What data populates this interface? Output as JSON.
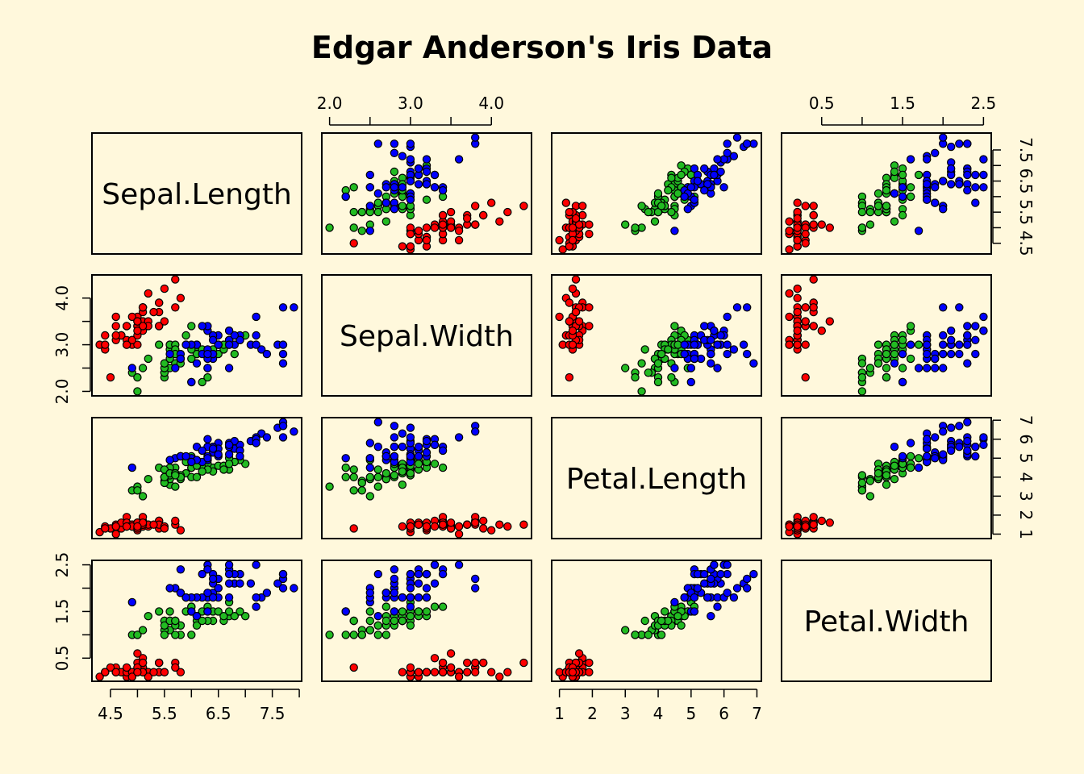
{
  "chart_data": {
    "type": "scatter",
    "subtype": "scatterplot-matrix",
    "title": "Edgar Anderson's Iris Data",
    "variables": [
      "Sepal.Length",
      "Sepal.Width",
      "Petal.Length",
      "Petal.Width"
    ],
    "ranges": {
      "Sepal.Length": [
        4.3,
        7.9
      ],
      "Sepal.Width": [
        2.0,
        4.4
      ],
      "Petal.Length": [
        1.0,
        6.9
      ],
      "Petal.Width": [
        0.1,
        2.5
      ]
    },
    "ticks": {
      "Sepal.Length": [
        "4.5",
        "5.5",
        "6.5",
        "7.5"
      ],
      "Sepal.Width": [
        "2.0",
        "3.0",
        "4.0"
      ],
      "Petal.Length": [
        "1",
        "2",
        "3",
        "4",
        "5",
        "6",
        "7"
      ],
      "Petal.Width": [
        "0.5",
        "1.5",
        "2.5"
      ]
    },
    "grid": false,
    "legend": "none",
    "series": [
      {
        "color": "#ff0000",
        "points": [
          [
            5.1,
            3.5,
            1.4,
            0.2
          ],
          [
            4.9,
            3.0,
            1.4,
            0.2
          ],
          [
            4.7,
            3.2,
            1.3,
            0.2
          ],
          [
            4.6,
            3.1,
            1.5,
            0.2
          ],
          [
            5.0,
            3.6,
            1.4,
            0.2
          ],
          [
            5.4,
            3.9,
            1.7,
            0.4
          ],
          [
            4.6,
            3.4,
            1.4,
            0.3
          ],
          [
            5.0,
            3.4,
            1.5,
            0.2
          ],
          [
            4.4,
            2.9,
            1.4,
            0.2
          ],
          [
            4.9,
            3.1,
            1.5,
            0.1
          ],
          [
            5.4,
            3.7,
            1.5,
            0.2
          ],
          [
            4.8,
            3.4,
            1.6,
            0.2
          ],
          [
            4.8,
            3.0,
            1.4,
            0.1
          ],
          [
            4.3,
            3.0,
            1.1,
            0.1
          ],
          [
            5.8,
            4.0,
            1.2,
            0.2
          ],
          [
            5.7,
            4.4,
            1.5,
            0.4
          ],
          [
            5.4,
            3.9,
            1.3,
            0.4
          ],
          [
            5.1,
            3.5,
            1.4,
            0.3
          ],
          [
            5.7,
            3.8,
            1.7,
            0.3
          ],
          [
            5.1,
            3.8,
            1.5,
            0.3
          ],
          [
            5.4,
            3.4,
            1.7,
            0.2
          ],
          [
            5.1,
            3.7,
            1.5,
            0.4
          ],
          [
            4.6,
            3.6,
            1.0,
            0.2
          ],
          [
            5.1,
            3.3,
            1.7,
            0.5
          ],
          [
            4.8,
            3.4,
            1.9,
            0.2
          ],
          [
            5.0,
            3.0,
            1.6,
            0.2
          ],
          [
            5.0,
            3.4,
            1.6,
            0.4
          ],
          [
            5.2,
            3.5,
            1.5,
            0.2
          ],
          [
            5.2,
            3.4,
            1.4,
            0.2
          ],
          [
            4.7,
            3.2,
            1.6,
            0.2
          ],
          [
            4.8,
            3.1,
            1.6,
            0.2
          ],
          [
            5.4,
            3.4,
            1.5,
            0.4
          ],
          [
            5.2,
            4.1,
            1.5,
            0.1
          ],
          [
            5.5,
            4.2,
            1.4,
            0.2
          ],
          [
            4.9,
            3.1,
            1.5,
            0.2
          ],
          [
            5.0,
            3.2,
            1.2,
            0.2
          ],
          [
            5.5,
            3.5,
            1.3,
            0.2
          ],
          [
            4.9,
            3.6,
            1.4,
            0.1
          ],
          [
            4.4,
            3.0,
            1.3,
            0.2
          ],
          [
            5.1,
            3.4,
            1.5,
            0.2
          ],
          [
            5.0,
            3.5,
            1.3,
            0.3
          ],
          [
            4.5,
            2.3,
            1.3,
            0.3
          ],
          [
            4.4,
            3.2,
            1.3,
            0.2
          ],
          [
            5.0,
            3.5,
            1.6,
            0.6
          ],
          [
            5.1,
            3.8,
            1.9,
            0.4
          ],
          [
            4.8,
            3.0,
            1.4,
            0.3
          ],
          [
            5.1,
            3.8,
            1.6,
            0.2
          ],
          [
            4.6,
            3.2,
            1.4,
            0.2
          ],
          [
            5.3,
            3.7,
            1.5,
            0.2
          ],
          [
            5.0,
            3.3,
            1.4,
            0.2
          ]
        ]
      },
      {
        "color": "#22bb22",
        "points": [
          [
            7.0,
            3.2,
            4.7,
            1.4
          ],
          [
            6.4,
            3.2,
            4.5,
            1.5
          ],
          [
            6.9,
            3.1,
            4.9,
            1.5
          ],
          [
            5.5,
            2.3,
            4.0,
            1.3
          ],
          [
            6.5,
            2.8,
            4.6,
            1.5
          ],
          [
            5.7,
            2.8,
            4.5,
            1.3
          ],
          [
            6.3,
            3.3,
            4.7,
            1.6
          ],
          [
            4.9,
            2.4,
            3.3,
            1.0
          ],
          [
            6.6,
            2.9,
            4.6,
            1.3
          ],
          [
            5.2,
            2.7,
            3.9,
            1.4
          ],
          [
            5.0,
            2.0,
            3.5,
            1.0
          ],
          [
            5.9,
            3.0,
            4.2,
            1.5
          ],
          [
            6.0,
            2.2,
            4.0,
            1.0
          ],
          [
            6.1,
            2.9,
            4.7,
            1.4
          ],
          [
            5.6,
            2.9,
            3.6,
            1.3
          ],
          [
            6.7,
            3.1,
            4.4,
            1.4
          ],
          [
            5.6,
            3.0,
            4.5,
            1.5
          ],
          [
            5.8,
            2.7,
            4.1,
            1.0
          ],
          [
            6.2,
            2.2,
            4.5,
            1.5
          ],
          [
            5.6,
            2.5,
            3.9,
            1.1
          ],
          [
            5.9,
            3.2,
            4.8,
            1.8
          ],
          [
            6.1,
            2.8,
            4.0,
            1.3
          ],
          [
            6.3,
            2.5,
            4.9,
            1.5
          ],
          [
            6.1,
            2.8,
            4.7,
            1.2
          ],
          [
            6.4,
            2.9,
            4.3,
            1.3
          ],
          [
            6.6,
            3.0,
            4.4,
            1.4
          ],
          [
            6.8,
            2.8,
            4.8,
            1.4
          ],
          [
            6.7,
            3.0,
            5.0,
            1.7
          ],
          [
            6.0,
            2.9,
            4.5,
            1.5
          ],
          [
            5.7,
            2.6,
            3.5,
            1.0
          ],
          [
            5.5,
            2.4,
            3.8,
            1.1
          ],
          [
            5.5,
            2.4,
            3.7,
            1.0
          ],
          [
            5.8,
            2.7,
            3.9,
            1.2
          ],
          [
            6.0,
            2.7,
            5.1,
            1.6
          ],
          [
            5.4,
            3.0,
            4.5,
            1.5
          ],
          [
            6.0,
            3.4,
            4.5,
            1.6
          ],
          [
            6.7,
            3.1,
            4.7,
            1.5
          ],
          [
            6.3,
            2.3,
            4.4,
            1.3
          ],
          [
            5.6,
            3.0,
            4.1,
            1.3
          ],
          [
            5.5,
            2.5,
            4.0,
            1.3
          ],
          [
            5.5,
            2.6,
            4.4,
            1.2
          ],
          [
            6.1,
            3.0,
            4.6,
            1.4
          ],
          [
            5.8,
            2.6,
            4.0,
            1.2
          ],
          [
            5.0,
            2.3,
            3.3,
            1.0
          ],
          [
            5.6,
            2.7,
            4.2,
            1.3
          ],
          [
            5.7,
            3.0,
            4.2,
            1.2
          ],
          [
            5.7,
            2.9,
            4.2,
            1.3
          ],
          [
            6.2,
            2.9,
            4.3,
            1.3
          ],
          [
            5.1,
            2.5,
            3.0,
            1.1
          ],
          [
            5.7,
            2.8,
            4.1,
            1.3
          ]
        ]
      },
      {
        "color": "#0000ff",
        "points": [
          [
            6.3,
            3.3,
            6.0,
            2.5
          ],
          [
            5.8,
            2.7,
            5.1,
            1.9
          ],
          [
            7.1,
            3.0,
            5.9,
            2.1
          ],
          [
            6.3,
            2.9,
            5.6,
            1.8
          ],
          [
            6.5,
            3.0,
            5.8,
            2.2
          ],
          [
            7.6,
            3.0,
            6.6,
            2.1
          ],
          [
            4.9,
            2.5,
            4.5,
            1.7
          ],
          [
            7.3,
            2.9,
            6.3,
            1.8
          ],
          [
            6.7,
            2.5,
            5.8,
            1.8
          ],
          [
            7.2,
            3.6,
            6.1,
            2.5
          ],
          [
            6.5,
            3.2,
            5.1,
            2.0
          ],
          [
            6.4,
            2.7,
            5.3,
            1.9
          ],
          [
            6.8,
            3.0,
            5.5,
            2.1
          ],
          [
            5.7,
            2.5,
            5.0,
            2.0
          ],
          [
            5.8,
            2.8,
            5.1,
            2.4
          ],
          [
            6.4,
            3.2,
            5.3,
            2.3
          ],
          [
            6.5,
            3.0,
            5.5,
            1.8
          ],
          [
            7.7,
            3.8,
            6.7,
            2.2
          ],
          [
            7.7,
            2.6,
            6.9,
            2.3
          ],
          [
            6.0,
            2.2,
            5.0,
            1.5
          ],
          [
            6.9,
            3.2,
            5.7,
            2.3
          ],
          [
            5.6,
            2.8,
            4.9,
            2.0
          ],
          [
            7.7,
            2.8,
            6.7,
            2.0
          ],
          [
            6.3,
            2.7,
            4.9,
            1.8
          ],
          [
            6.7,
            3.3,
            5.7,
            2.1
          ],
          [
            7.2,
            3.2,
            6.0,
            1.8
          ],
          [
            6.2,
            2.8,
            4.8,
            1.8
          ],
          [
            6.1,
            3.0,
            4.9,
            1.8
          ],
          [
            6.4,
            2.8,
            5.6,
            2.1
          ],
          [
            7.2,
            3.0,
            5.8,
            1.6
          ],
          [
            7.4,
            2.8,
            6.1,
            1.9
          ],
          [
            7.9,
            3.8,
            6.4,
            2.0
          ],
          [
            6.4,
            2.8,
            5.6,
            2.2
          ],
          [
            6.3,
            2.8,
            5.1,
            1.5
          ],
          [
            6.1,
            2.6,
            5.6,
            1.4
          ],
          [
            7.7,
            3.0,
            6.1,
            2.3
          ],
          [
            6.3,
            3.4,
            5.6,
            2.4
          ],
          [
            6.4,
            3.1,
            5.5,
            1.8
          ],
          [
            6.0,
            3.0,
            4.8,
            1.8
          ],
          [
            6.9,
            3.1,
            5.4,
            2.1
          ],
          [
            6.7,
            3.1,
            5.6,
            2.4
          ],
          [
            6.9,
            3.1,
            5.1,
            2.3
          ],
          [
            5.8,
            2.7,
            5.1,
            1.9
          ],
          [
            6.8,
            3.2,
            5.9,
            2.3
          ],
          [
            6.7,
            3.3,
            5.7,
            2.5
          ],
          [
            6.7,
            3.0,
            5.2,
            2.3
          ],
          [
            6.3,
            2.5,
            5.0,
            1.9
          ],
          [
            6.5,
            3.0,
            5.2,
            2.0
          ],
          [
            6.2,
            3.4,
            5.4,
            2.3
          ],
          [
            5.9,
            3.0,
            5.1,
            1.8
          ]
        ]
      }
    ]
  }
}
